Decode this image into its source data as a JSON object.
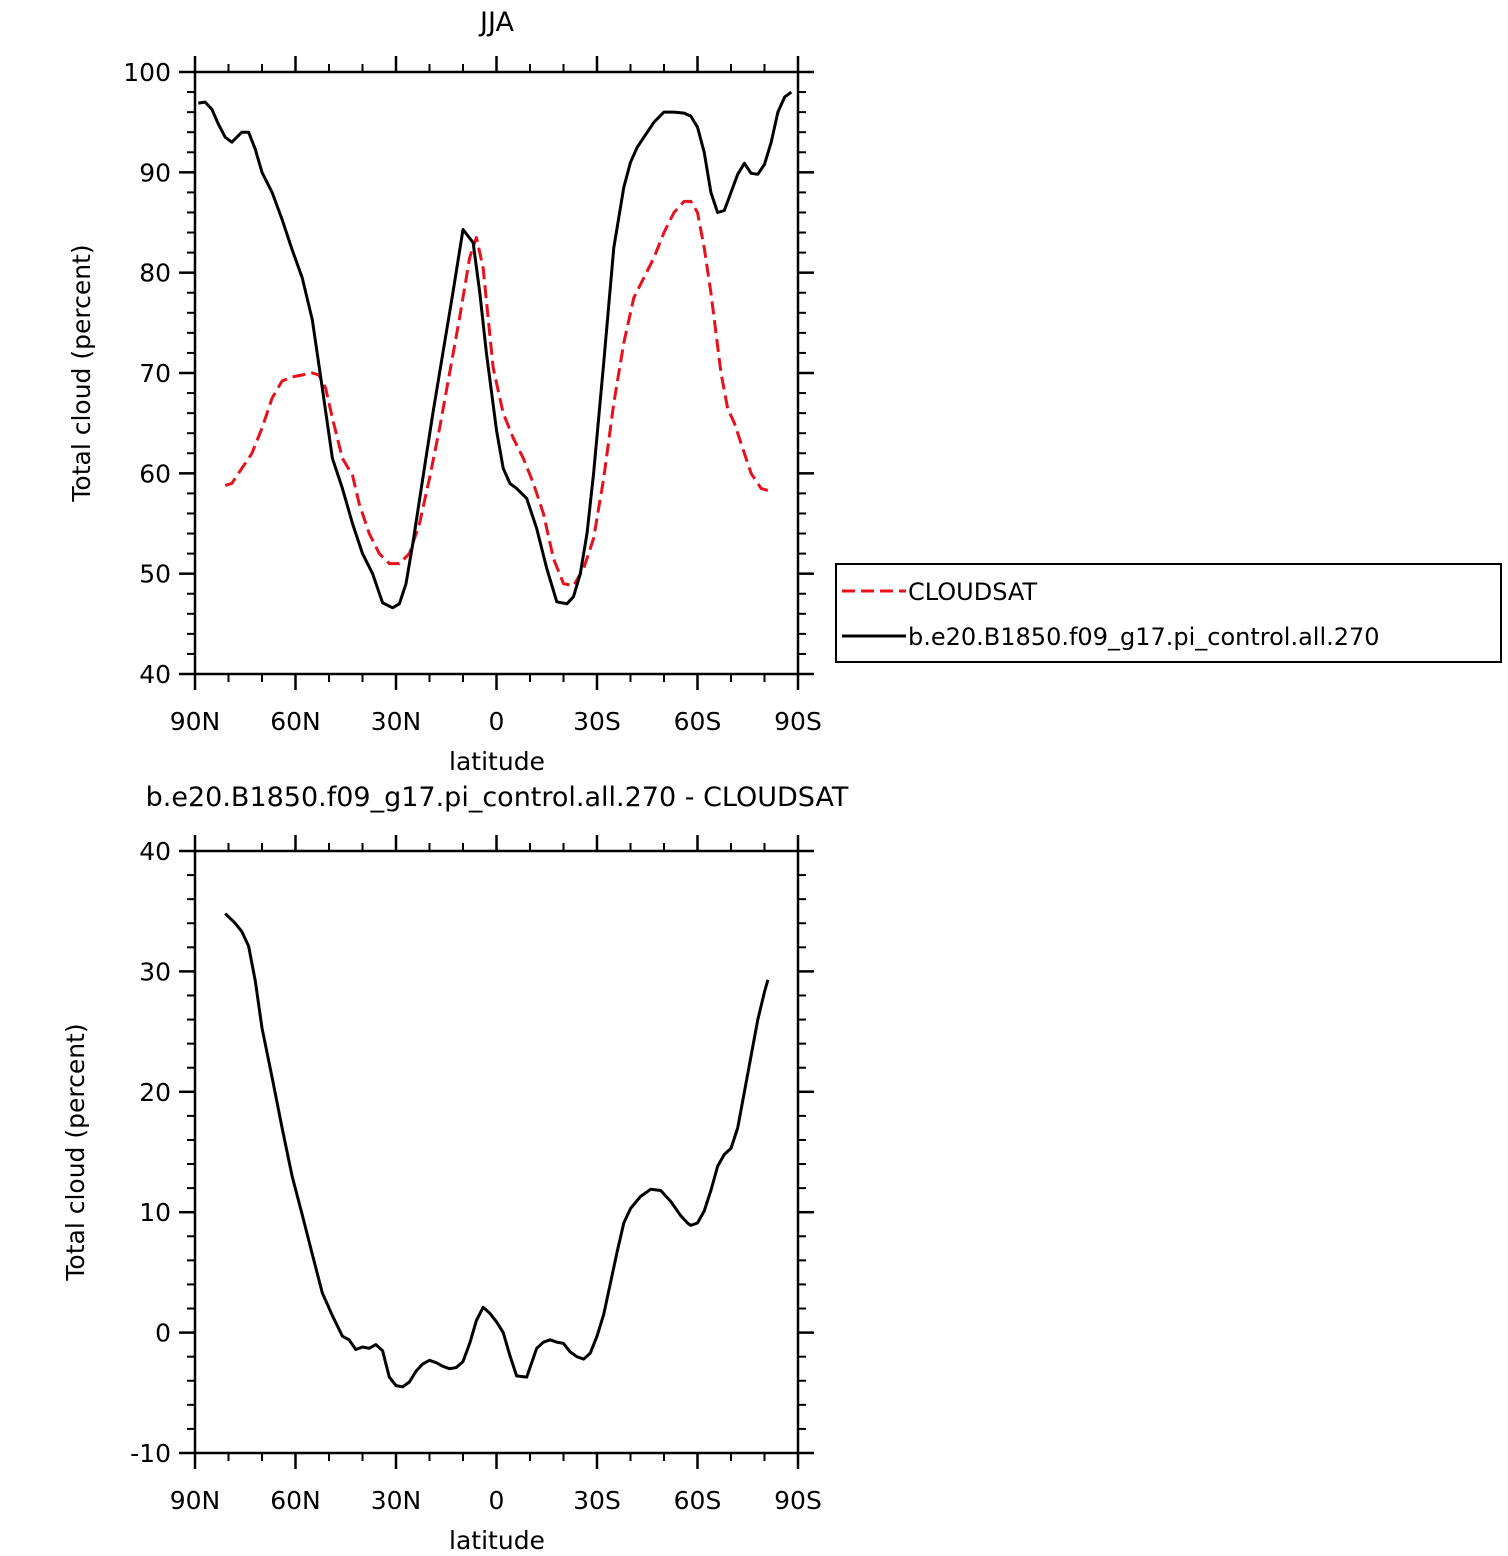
{
  "chart_data": [
    {
      "type": "line",
      "title": "JJA",
      "xlabel": "latitude",
      "ylabel": "Total cloud (percent)",
      "ylim": [
        40,
        100
      ],
      "yticks": [
        "40",
        "50",
        "60",
        "70",
        "80",
        "90",
        "100"
      ],
      "xlim": [
        90,
        -90
      ],
      "xticks": [
        "90N",
        "60N",
        "30N",
        "0",
        "30S",
        "60S",
        "90S"
      ],
      "legend": {
        "placement": "right"
      },
      "series": [
        {
          "name": "CLOUDSAT",
          "color": "#e8101b",
          "dash": "dashed",
          "x": [
            81,
            79,
            76,
            73,
            70,
            67,
            64,
            61,
            58,
            55,
            53,
            51,
            49,
            46,
            43,
            41,
            38,
            35,
            32,
            29,
            26,
            23,
            20,
            17,
            14,
            11,
            8,
            6,
            4,
            1,
            -2,
            -5,
            -8,
            -11,
            -14,
            -17,
            -20,
            -23,
            -26,
            -29,
            -32,
            -35,
            -38,
            -41,
            -44,
            -47,
            -50,
            -53,
            -56,
            -58,
            -60,
            -62,
            -64,
            -67,
            -69,
            -71,
            -73,
            -76,
            -79,
            -81
          ],
          "y": [
            58.8,
            59,
            60.5,
            62,
            64.5,
            67.5,
            69.2,
            69.6,
            69.8,
            70.0,
            69.8,
            68.5,
            65.5,
            61.5,
            59.8,
            57,
            54,
            52,
            51,
            51,
            52,
            55,
            59.5,
            64.5,
            70,
            75.5,
            81.5,
            83.5,
            80.5,
            70.5,
            66,
            63.5,
            61.5,
            59,
            56,
            51.5,
            49,
            48.8,
            50.5,
            53.5,
            59.5,
            67,
            73,
            77.5,
            79.5,
            81.5,
            84,
            86,
            87.1,
            87.1,
            86,
            82.5,
            78,
            70,
            66.5,
            65,
            63,
            60,
            58.5,
            58.3
          ]
        },
        {
          "name": "b.e20.B1850.f09_g17.pi_control.all.270",
          "color": "#000000",
          "dash": "solid",
          "x": [
            89,
            87,
            85,
            83,
            81,
            79,
            76,
            74,
            72,
            70,
            67,
            64,
            61,
            58,
            55,
            52,
            49,
            46,
            43,
            40,
            37,
            34,
            31,
            29,
            27,
            25,
            22,
            19,
            16,
            13,
            10,
            7,
            5,
            3,
            0,
            -2,
            -4,
            -6,
            -9,
            -12,
            -15,
            -18,
            -21,
            -23,
            -25,
            -27,
            -29,
            -32,
            -35,
            -38,
            -40,
            -42,
            -44,
            -47,
            -50,
            -53,
            -56,
            -58,
            -60,
            -62,
            -64,
            -66,
            -68,
            -70,
            -72,
            -74,
            -76,
            -78,
            -80,
            -82,
            -84,
            -86,
            -88
          ],
          "y": [
            96.9,
            97,
            96.3,
            94.8,
            93.5,
            93,
            94,
            94,
            92.3,
            90,
            88,
            85.3,
            82.3,
            79.5,
            75.3,
            68.5,
            61.5,
            58.5,
            55,
            52,
            50,
            47.1,
            46.6,
            47,
            49,
            53,
            59.5,
            66,
            72,
            78,
            84.3,
            83,
            78,
            72,
            64.3,
            60.5,
            59,
            58.5,
            57.5,
            54.5,
            50.5,
            47.2,
            47,
            47.7,
            50,
            54,
            60,
            71,
            82.5,
            88.5,
            91,
            92.5,
            93.5,
            95,
            96,
            96,
            95.9,
            95.6,
            94.5,
            92,
            88,
            86,
            86.2,
            88,
            89.8,
            90.9,
            89.9,
            89.8,
            90.8,
            93,
            96,
            97.5,
            98
          ]
        }
      ]
    },
    {
      "type": "line",
      "title": "b.e20.B1850.f09_g17.pi_control.all.270 - CLOUDSAT",
      "xlabel": "latitude",
      "ylabel": "Total cloud (percent)",
      "ylim": [
        -10,
        40
      ],
      "yticks": [
        "-10",
        "0",
        "10",
        "20",
        "30",
        "40"
      ],
      "xlim": [
        90,
        -90
      ],
      "xticks": [
        "90N",
        "60N",
        "30N",
        "0",
        "30S",
        "60S",
        "90S"
      ],
      "series": [
        {
          "color": "#000000",
          "dash": "solid",
          "x": [
            81,
            78,
            76,
            74,
            72,
            70,
            67,
            64,
            61,
            58,
            55,
            52,
            49,
            46,
            44,
            42,
            40,
            38,
            36,
            34,
            32,
            30,
            28,
            26,
            24,
            22,
            20,
            18,
            16,
            14,
            12,
            10,
            8,
            6,
            4,
            2,
            0,
            -2,
            -4,
            -6,
            -9,
            -12,
            -14,
            -16,
            -18,
            -20,
            -22,
            -24,
            -26,
            -28,
            -30,
            -32,
            -34,
            -36,
            -38,
            -40,
            -43,
            -46,
            -49,
            -52,
            -55,
            -57,
            -58,
            -60,
            -62,
            -64,
            -66,
            -68,
            -70,
            -72,
            -74,
            -76,
            -78,
            -80,
            -81
          ],
          "y": [
            34.8,
            34,
            33.3,
            32.1,
            29.2,
            25.3,
            21.2,
            17,
            13,
            9.8,
            6.5,
            3.3,
            1.4,
            -0.3,
            -0.6,
            -1.4,
            -1.2,
            -1.3,
            -1,
            -1.5,
            -3.7,
            -4.4,
            -4.5,
            -4.1,
            -3.2,
            -2.6,
            -2.3,
            -2.5,
            -2.8,
            -3,
            -2.9,
            -2.4,
            -0.9,
            1,
            2.1,
            1.6,
            0.9,
            0,
            -1.9,
            -3.6,
            -3.7,
            -1.3,
            -0.8,
            -0.6,
            -0.8,
            -0.9,
            -1.6,
            -2,
            -2.2,
            -1.7,
            -0.3,
            1.5,
            4.1,
            6.7,
            9.1,
            10.3,
            11.3,
            11.9,
            11.8,
            10.9,
            9.7,
            9.1,
            8.9,
            9.1,
            10.1,
            11.8,
            13.8,
            14.8,
            15.3,
            17,
            20,
            23,
            26,
            28.3,
            29.3
          ]
        }
      ]
    }
  ]
}
